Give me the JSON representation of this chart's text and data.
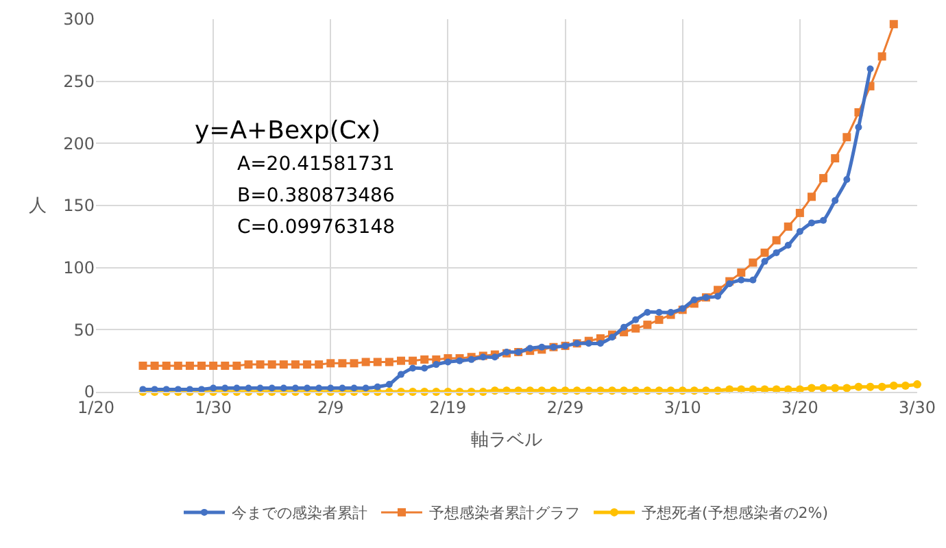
{
  "chart_data": {
    "type": "line",
    "xlabel": "軸ラベル",
    "ylabel": "人",
    "annotations": [
      "y=A+Bexp(Cx)",
      "A=20.41581731",
      "B=0.380873486",
      "C=0.099763148"
    ],
    "x": [
      "--01-24",
      "--01-25",
      "--01-26",
      "--01-27",
      "--01-28",
      "--01-29",
      "--01-30",
      "--01-31",
      "--02-01",
      "--02-02",
      "--02-03",
      "--02-04",
      "--02-05",
      "--02-06",
      "--02-07",
      "--02-08",
      "--02-09",
      "--02-10",
      "--02-11",
      "--02-12",
      "--02-13",
      "--02-14",
      "--02-15",
      "--02-16",
      "--02-17",
      "--02-18",
      "--02-19",
      "--02-20",
      "--02-21",
      "--02-22",
      "--02-23",
      "--02-24",
      "--02-25",
      "--02-26",
      "--02-27",
      "--02-28",
      "--02-29",
      "--03-01",
      "--03-02",
      "--03-03",
      "--03-04",
      "--03-05",
      "--03-06",
      "--03-07",
      "--03-08",
      "--03-09",
      "--03-10",
      "--03-11",
      "--03-12",
      "--03-13",
      "--03-14",
      "--03-15",
      "--03-16",
      "--03-17",
      "--03-18",
      "--03-19",
      "--03-20",
      "--03-21",
      "--03-22",
      "--03-23",
      "--03-24",
      "--03-25",
      "--03-26",
      "--03-27",
      "--03-28",
      "--03-29",
      "--03-30"
    ],
    "series": [
      {
        "name": "今までの感染者累計",
        "color": "#4472c4",
        "marker": "circle",
        "values": [
          2,
          2,
          2,
          2,
          2,
          2,
          3,
          3,
          3,
          3,
          3,
          3,
          3,
          3,
          3,
          3,
          3,
          3,
          3,
          3,
          4,
          6,
          14,
          19,
          19,
          22,
          24,
          25,
          26,
          28,
          28,
          32,
          32,
          35,
          36,
          36,
          37,
          39,
          39,
          39,
          44,
          52,
          58,
          64,
          64,
          64,
          67,
          74,
          76,
          77,
          87,
          90,
          90,
          105,
          112,
          118,
          129,
          136,
          138,
          154,
          171,
          213,
          260,
          null,
          null,
          null,
          null
        ]
      },
      {
        "name": "予想感染者累計グラフ",
        "color": "#ed7d31",
        "marker": "square",
        "values": [
          21,
          21,
          21,
          21,
          21,
          21,
          21,
          21,
          21,
          22,
          22,
          22,
          22,
          22,
          22,
          22,
          23,
          23,
          23,
          24,
          24,
          24,
          25,
          25,
          26,
          26,
          27,
          27,
          28,
          29,
          30,
          31,
          32,
          33,
          34,
          36,
          37,
          39,
          41,
          43,
          46,
          48,
          51,
          54,
          58,
          62,
          66,
          71,
          76,
          82,
          89,
          96,
          104,
          112,
          122,
          133,
          144,
          157,
          172,
          188,
          205,
          225,
          246,
          270,
          296,
          null,
          null
        ]
      },
      {
        "name": "予想死者(予想感染者の2%)",
        "color": "#ffc000",
        "marker": "circle",
        "values": [
          0,
          0,
          0,
          0,
          0,
          0,
          0,
          0,
          0,
          0,
          0,
          0,
          0,
          0,
          0,
          0,
          0,
          0,
          0,
          0,
          0,
          0,
          0,
          0,
          0,
          0,
          0,
          0,
          0,
          0,
          1,
          1,
          1,
          1,
          1,
          1,
          1,
          1,
          1,
          1,
          1,
          1,
          1,
          1,
          1,
          1,
          1,
          1,
          1,
          1,
          2,
          2,
          2,
          2,
          2,
          2,
          2,
          3,
          3,
          3,
          3,
          4,
          4,
          4,
          5,
          5,
          6
        ]
      }
    ],
    "xlim": [
      "--01-20",
      "--03-30"
    ],
    "xticks": [
      {
        "value": "--01-20",
        "label": "1/20"
      },
      {
        "value": "--01-30",
        "label": "1/30"
      },
      {
        "value": "--02-09",
        "label": "2/9"
      },
      {
        "value": "--02-19",
        "label": "2/19"
      },
      {
        "value": "--02-29",
        "label": "2/29"
      },
      {
        "value": "--03-10",
        "label": "3/10"
      },
      {
        "value": "--03-20",
        "label": "3/20"
      },
      {
        "value": "--03-30",
        "label": "3/30"
      }
    ],
    "ylim": [
      0,
      300
    ],
    "yticks": [
      0,
      50,
      100,
      150,
      200,
      250,
      300
    ],
    "grid": true,
    "legend": "bottom",
    "line_style": "solid"
  }
}
